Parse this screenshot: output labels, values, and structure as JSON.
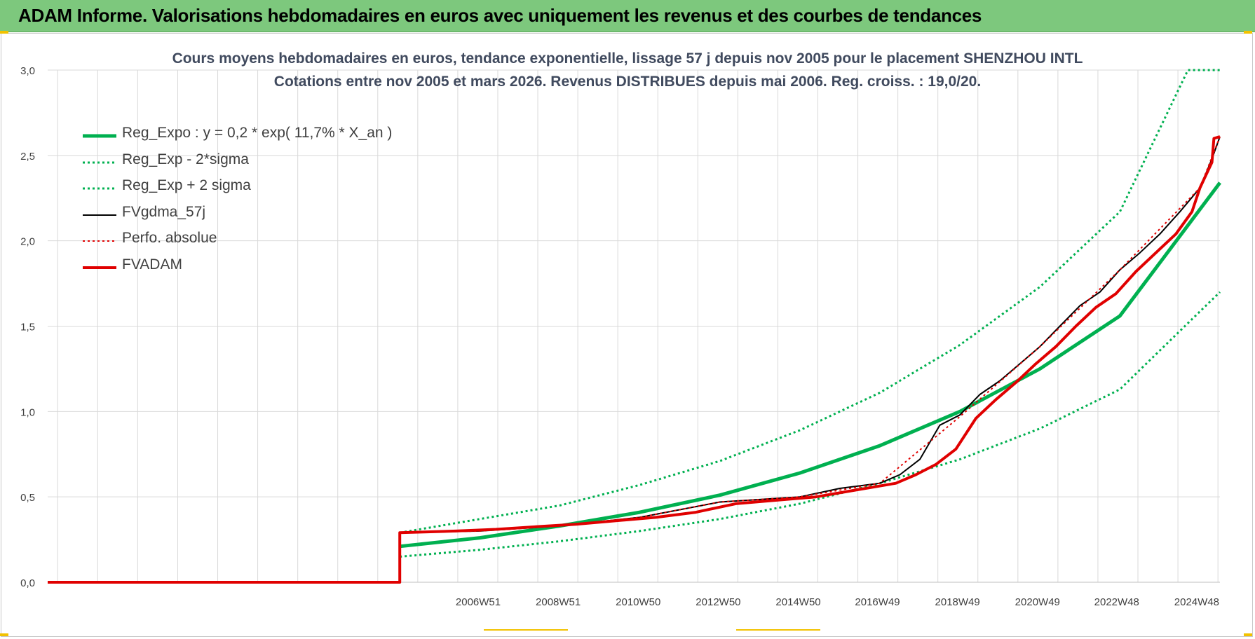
{
  "header": {
    "title": "ADAM Informe. Valorisations hebdomadaires en euros avec uniquement les revenus et des courbes de tendances"
  },
  "colors": {
    "header_bg": "#7dc87d",
    "green": "#00b050",
    "red": "#e00000",
    "black": "#000000",
    "grid": "#d9d9d9",
    "accent": "#f2c200"
  },
  "chart_data": {
    "type": "line",
    "title": "Cours moyens hebdomadaires en euros, tendance exponentielle, lissage 57 j depuis nov 2005  pour le placement SHENZHOU INTL",
    "subtitle": "Cotations entre nov 2005 et mars 2026. Revenus DISTRIBUES depuis mai 2006.  Reg. croiss. : 19,0/20.",
    "xlabel": "",
    "ylabel": "",
    "ylim": [
      0,
      3
    ],
    "xlim": [
      1996.2,
      2025.5
    ],
    "yticks": [
      "0,0",
      "0,5",
      "1,0",
      "1,5",
      "2,0",
      "2,5",
      "3,0"
    ],
    "xticks": [
      {
        "label": "2006W51",
        "x": 2006.96
      },
      {
        "label": "2008W51",
        "x": 2008.96
      },
      {
        "label": "2010W50",
        "x": 2010.96
      },
      {
        "label": "2012W50",
        "x": 2012.96
      },
      {
        "label": "2014W50",
        "x": 2014.96
      },
      {
        "label": "2016W49",
        "x": 2016.94
      },
      {
        "label": "2018W49",
        "x": 2018.94
      },
      {
        "label": "2020W49",
        "x": 2020.94
      },
      {
        "label": "2022W48",
        "x": 2022.92
      },
      {
        "label": "2024W48",
        "x": 2024.92
      }
    ],
    "grid": true,
    "legend_position": "top-left",
    "series": [
      {
        "name": "Reg_Expo : y = 0,2 * exp( 11,7% *  X_an )",
        "style": "solid-thick",
        "color": "#00b050",
        "points": [
          [
            2005.0,
            0.21
          ],
          [
            2007.0,
            0.26
          ],
          [
            2009.0,
            0.33
          ],
          [
            2011.0,
            0.41
          ],
          [
            2013.0,
            0.51
          ],
          [
            2015.0,
            0.64
          ],
          [
            2017.0,
            0.8
          ],
          [
            2019.0,
            1.0
          ],
          [
            2021.0,
            1.25
          ],
          [
            2023.0,
            1.56
          ],
          [
            2025.5,
            2.34
          ]
        ]
      },
      {
        "name": "Reg_Exp - 2*sigma",
        "style": "dotted",
        "color": "#00b050",
        "points": [
          [
            2005.0,
            0.15
          ],
          [
            2007.0,
            0.19
          ],
          [
            2009.0,
            0.24
          ],
          [
            2011.0,
            0.3
          ],
          [
            2013.0,
            0.37
          ],
          [
            2015.0,
            0.46
          ],
          [
            2017.0,
            0.58
          ],
          [
            2019.0,
            0.72
          ],
          [
            2021.0,
            0.9
          ],
          [
            2023.0,
            1.13
          ],
          [
            2025.5,
            1.7
          ]
        ]
      },
      {
        "name": "Reg_Exp + 2 sigma",
        "style": "dotted",
        "color": "#00b050",
        "points": [
          [
            2005.0,
            0.29
          ],
          [
            2007.0,
            0.37
          ],
          [
            2009.0,
            0.45
          ],
          [
            2011.0,
            0.57
          ],
          [
            2013.0,
            0.71
          ],
          [
            2015.0,
            0.89
          ],
          [
            2017.0,
            1.11
          ],
          [
            2019.0,
            1.39
          ],
          [
            2021.0,
            1.73
          ],
          [
            2023.0,
            2.17
          ],
          [
            2024.7,
            3.0
          ],
          [
            2025.5,
            3.0
          ]
        ]
      },
      {
        "name": "FVgdma_57j",
        "style": "solid-thin",
        "color": "#000000",
        "points": [
          [
            1996.2,
            0.0
          ],
          [
            2005.0,
            0.0
          ],
          [
            2005.0,
            0.29
          ],
          [
            2007.0,
            0.3
          ],
          [
            2009.0,
            0.33
          ],
          [
            2011.0,
            0.38
          ],
          [
            2013.0,
            0.47
          ],
          [
            2015.0,
            0.5
          ],
          [
            2016.0,
            0.55
          ],
          [
            2017.0,
            0.58
          ],
          [
            2017.5,
            0.63
          ],
          [
            2018.0,
            0.72
          ],
          [
            2018.5,
            0.92
          ],
          [
            2019.0,
            0.98
          ],
          [
            2019.5,
            1.1
          ],
          [
            2020.0,
            1.18
          ],
          [
            2020.5,
            1.28
          ],
          [
            2021.0,
            1.38
          ],
          [
            2021.5,
            1.5
          ],
          [
            2022.0,
            1.62
          ],
          [
            2022.5,
            1.7
          ],
          [
            2023.0,
            1.83
          ],
          [
            2023.5,
            1.93
          ],
          [
            2024.0,
            2.04
          ],
          [
            2024.5,
            2.17
          ],
          [
            2025.0,
            2.31
          ],
          [
            2025.3,
            2.48
          ],
          [
            2025.5,
            2.61
          ]
        ]
      },
      {
        "name": "Perfo. absolue",
        "style": "dotted",
        "color": "#e00000",
        "points": [
          [
            1996.2,
            0.0
          ],
          [
            2005.0,
            0.0
          ],
          [
            2005.0,
            0.29
          ],
          [
            2007.0,
            0.3
          ],
          [
            2009.0,
            0.33
          ],
          [
            2011.0,
            0.38
          ],
          [
            2013.0,
            0.47
          ],
          [
            2015.0,
            0.5
          ],
          [
            2017.0,
            0.58
          ],
          [
            2019.0,
            0.97
          ],
          [
            2021.0,
            1.38
          ],
          [
            2023.0,
            1.83
          ],
          [
            2025.0,
            2.31
          ],
          [
            2025.5,
            2.61
          ]
        ]
      },
      {
        "name": "FVADAM",
        "style": "solid-thick",
        "color": "#e00000",
        "points": [
          [
            1996.2,
            0.0
          ],
          [
            2005.0,
            0.0
          ],
          [
            2005.0,
            0.29
          ],
          [
            2006.4,
            0.3
          ],
          [
            2007.4,
            0.31
          ],
          [
            2008.4,
            0.325
          ],
          [
            2009.4,
            0.34
          ],
          [
            2010.4,
            0.36
          ],
          [
            2011.4,
            0.38
          ],
          [
            2012.4,
            0.41
          ],
          [
            2013.4,
            0.46
          ],
          [
            2014.4,
            0.48
          ],
          [
            2015.4,
            0.5
          ],
          [
            2016.4,
            0.54
          ],
          [
            2017.4,
            0.58
          ],
          [
            2017.9,
            0.63
          ],
          [
            2018.4,
            0.69
          ],
          [
            2018.9,
            0.78
          ],
          [
            2019.4,
            0.96
          ],
          [
            2019.9,
            1.07
          ],
          [
            2020.4,
            1.17
          ],
          [
            2020.9,
            1.28
          ],
          [
            2021.4,
            1.38
          ],
          [
            2021.9,
            1.5
          ],
          [
            2022.4,
            1.61
          ],
          [
            2022.9,
            1.69
          ],
          [
            2023.4,
            1.82
          ],
          [
            2023.9,
            1.93
          ],
          [
            2024.4,
            2.04
          ],
          [
            2024.8,
            2.17
          ],
          [
            2025.0,
            2.31
          ],
          [
            2025.3,
            2.46
          ],
          [
            2025.35,
            2.6
          ],
          [
            2025.5,
            2.61
          ]
        ]
      }
    ]
  }
}
